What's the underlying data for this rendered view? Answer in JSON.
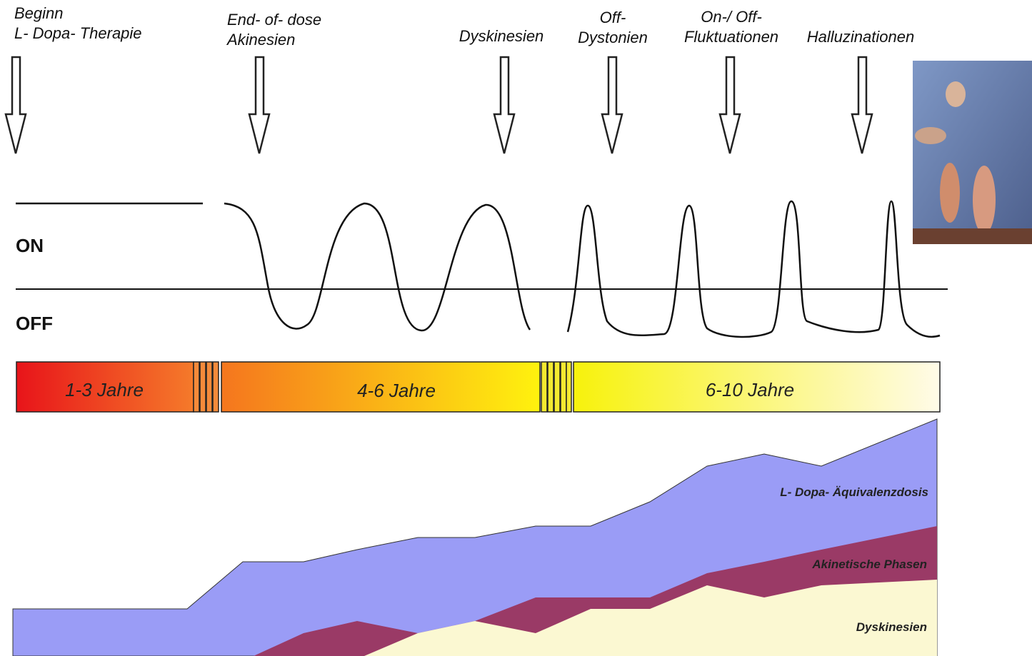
{
  "events": [
    {
      "lines": [
        "Beginn",
        "L- Dopa- Therapie"
      ]
    },
    {
      "lines": [
        "End- of- dose",
        "Akinesien"
      ]
    },
    {
      "lines": [
        "Dyskinesien"
      ]
    },
    {
      "lines": [
        "Off-",
        "Dystonien"
      ]
    },
    {
      "lines": [
        "On-/ Off-",
        "Fluktuationen"
      ]
    },
    {
      "lines": [
        "Halluzinationen"
      ]
    }
  ],
  "states": {
    "on": "ON",
    "off": "OFF"
  },
  "periods": [
    "1-3 Jahre",
    "4-6 Jahre",
    "6-10 Jahre"
  ],
  "areas": {
    "dose": "L- Dopa- Äquivalenzdosis",
    "akinetic": "Akinetische Phasen",
    "dyskinesia": "Dyskinesien"
  }
}
